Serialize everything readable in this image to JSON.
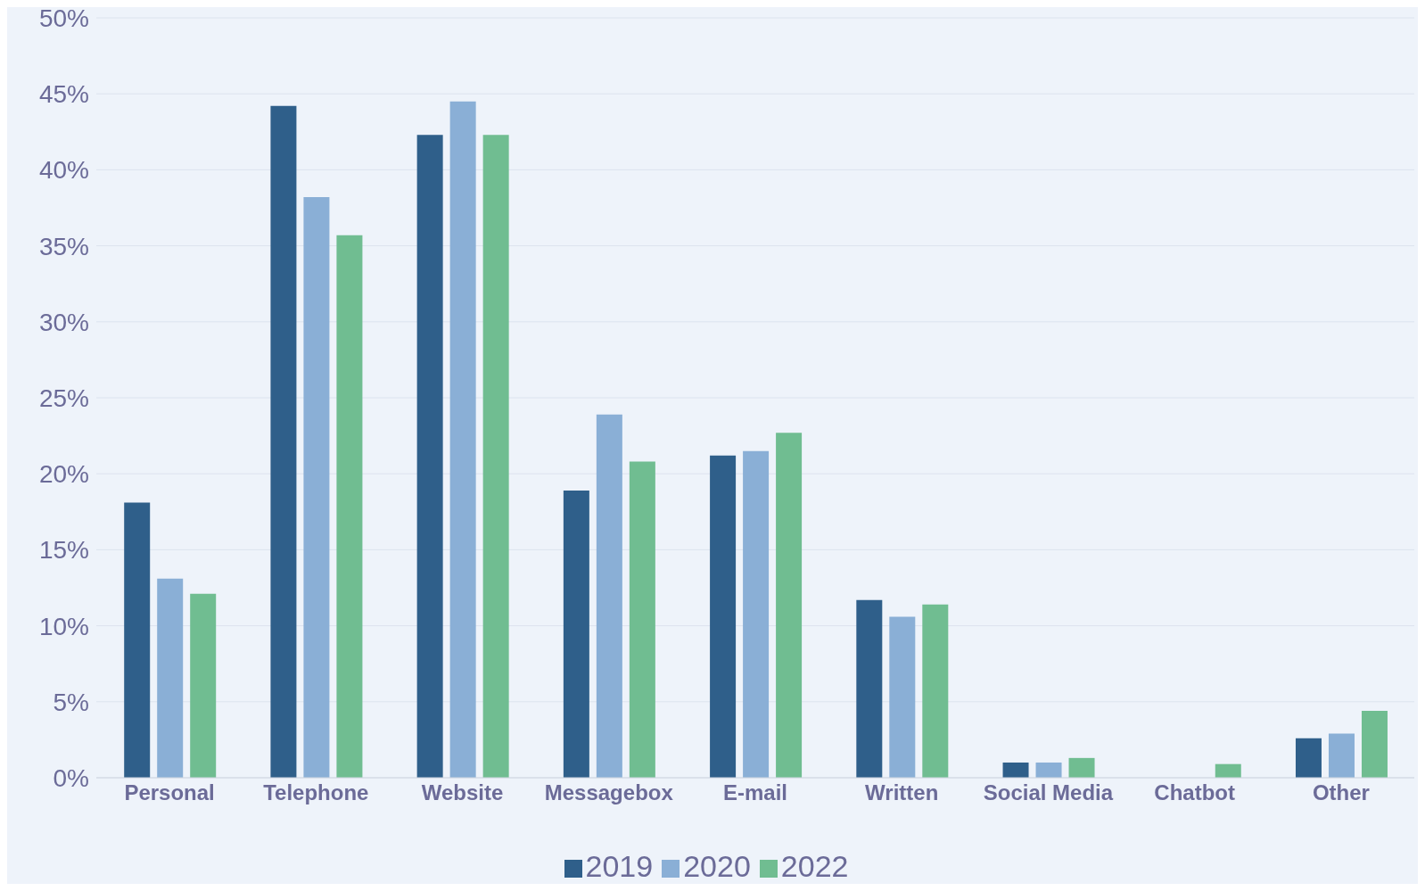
{
  "chart_data": {
    "type": "bar",
    "categories": [
      "Personal",
      "Telephone",
      "Website",
      "Messagebox",
      "E-mail",
      "Written",
      "Social Media",
      "Chatbot",
      "Other"
    ],
    "series": [
      {
        "name": "2019",
        "color": "#2f5f8a",
        "values": [
          18.1,
          44.2,
          42.3,
          18.9,
          21.2,
          11.7,
          1.0,
          null,
          2.6
        ]
      },
      {
        "name": "2020",
        "color": "#8aafd6",
        "values": [
          13.1,
          38.2,
          44.5,
          23.9,
          21.5,
          10.6,
          1.0,
          null,
          2.9
        ]
      },
      {
        "name": "2022",
        "color": "#70bd91",
        "values": [
          12.1,
          35.7,
          42.3,
          20.8,
          22.7,
          11.4,
          1.3,
          0.9,
          4.4
        ]
      }
    ],
    "ylim": [
      0,
      50
    ],
    "yticks": [
      {
        "value": 0,
        "label": "0%"
      },
      {
        "value": 5,
        "label": "5%"
      },
      {
        "value": 10,
        "label": "10%"
      },
      {
        "value": 15,
        "label": "15%"
      },
      {
        "value": 20,
        "label": "20%"
      },
      {
        "value": 25,
        "label": "25%"
      },
      {
        "value": 30,
        "label": "30%"
      },
      {
        "value": 35,
        "label": "35%"
      },
      {
        "value": 40,
        "label": "40%"
      },
      {
        "value": 45,
        "label": "45%"
      },
      {
        "value": 50,
        "label": "50%"
      }
    ],
    "grid": "y",
    "legend": "bottom"
  }
}
